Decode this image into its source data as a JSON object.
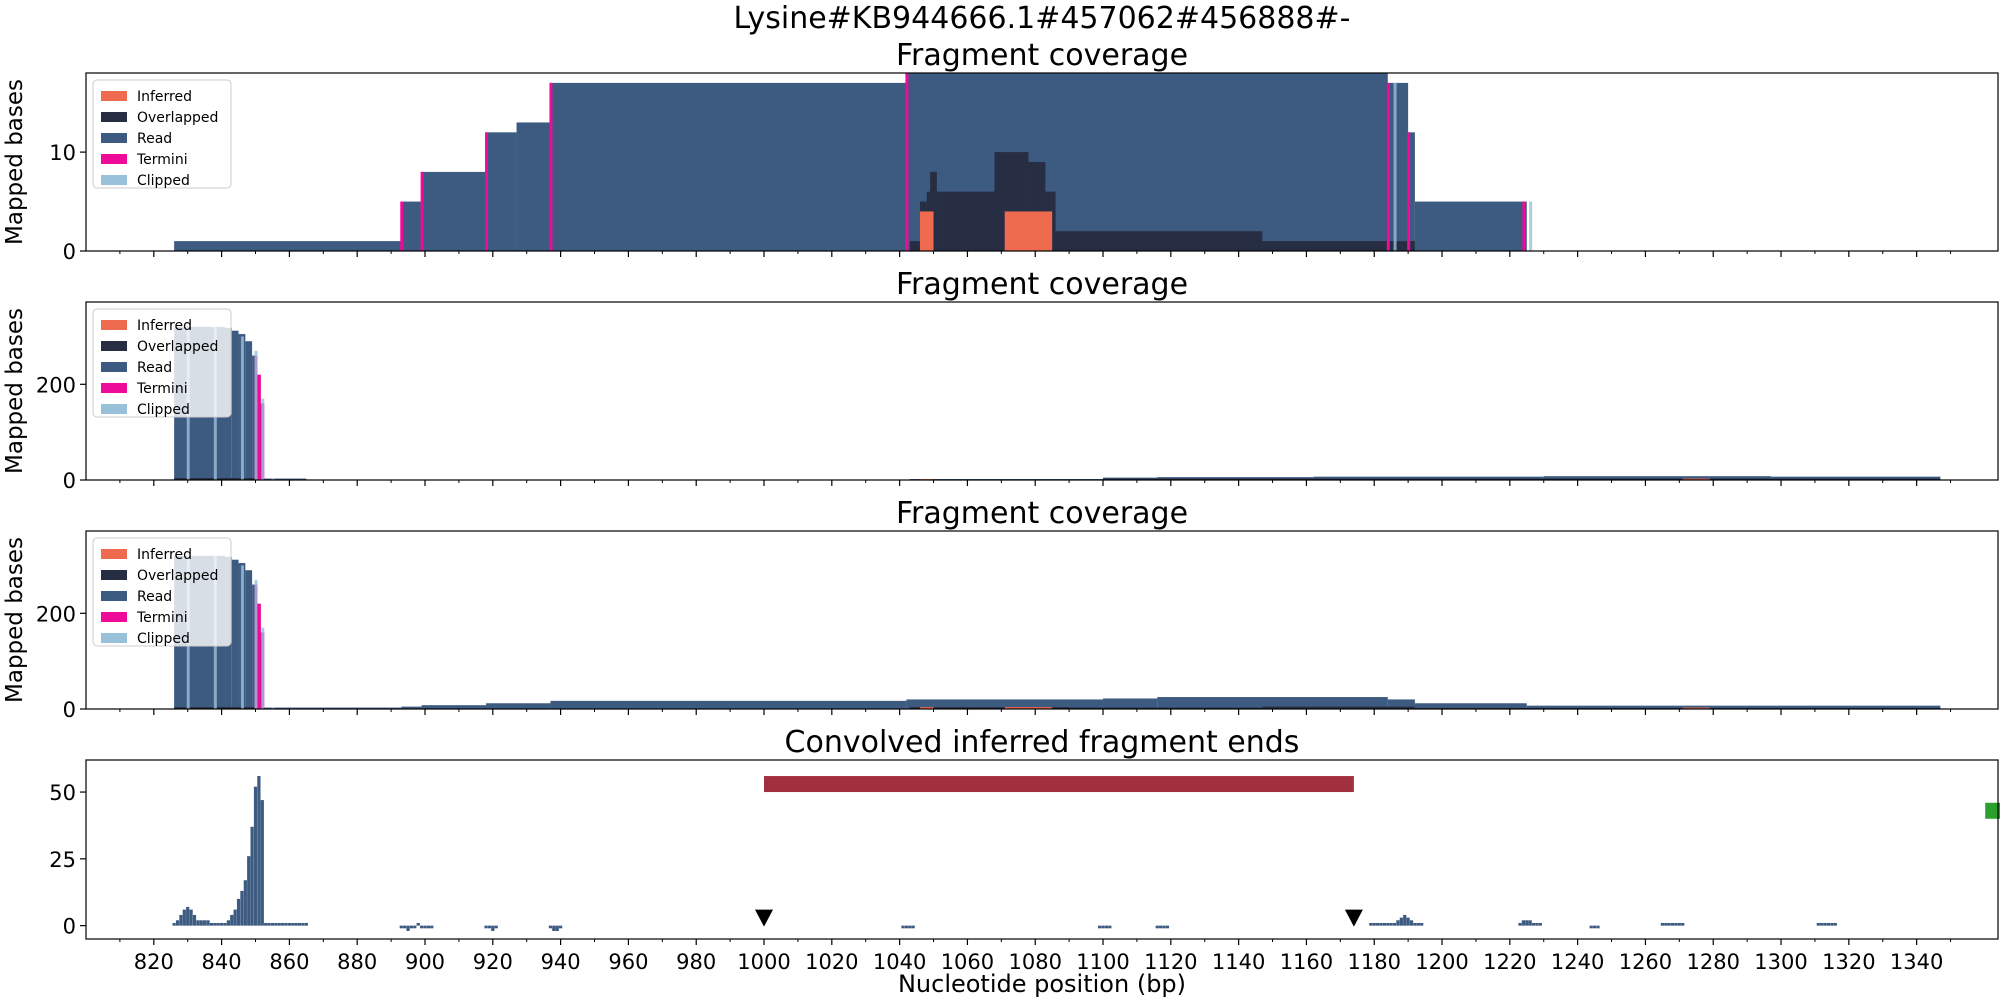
{
  "figure": {
    "suptitle": "Lysine#KB944666.1#457062#456888#-",
    "xlabel": "Nucleotide position (bp)"
  },
  "colors": {
    "inferred": "#ee6b4f",
    "overlapped": "#272e43",
    "read": "#3d5a80",
    "termini": "#ee0b99",
    "clipped": "#98c1d9",
    "region_bar": "#a12f3d",
    "end_marker": "#2ca02c",
    "triangle": "#000000"
  },
  "chart_data": [
    {
      "type": "area",
      "title": "Fragment coverage",
      "ylabel": "Mapped bases",
      "xlim": [
        800,
        1364
      ],
      "ylim": [
        0,
        18
      ],
      "yticks": [
        0,
        10
      ],
      "legend": {
        "placement": "top-left",
        "entries": [
          "Inferred",
          "Overlapped",
          "Read",
          "Termini",
          "Clipped"
        ]
      },
      "series": [
        {
          "name": "Read",
          "steps": [
            [
              826,
              1
            ],
            [
              893,
              5
            ],
            [
              899,
              8
            ],
            [
              918,
              12
            ],
            [
              927,
              13
            ],
            [
              937,
              17
            ],
            [
              1042,
              18
            ],
            [
              1184,
              17
            ],
            [
              1190,
              12
            ],
            [
              1192,
              5
            ],
            [
              1225,
              0
            ]
          ]
        },
        {
          "name": "Overlapped",
          "steps": [
            [
              1043,
              1
            ],
            [
              1046,
              5
            ],
            [
              1048,
              6
            ],
            [
              1049,
              8
            ],
            [
              1051,
              6
            ],
            [
              1068,
              10
            ],
            [
              1078,
              9
            ],
            [
              1083,
              6
            ],
            [
              1086,
              2
            ],
            [
              1147,
              1
            ],
            [
              1192,
              0
            ]
          ]
        },
        {
          "name": "Inferred",
          "steps": [
            [
              1046,
              4
            ],
            [
              1050,
              0
            ],
            [
              1071,
              4
            ],
            [
              1085,
              0
            ]
          ]
        },
        {
          "name": "Termini",
          "points": [
            [
              893,
              5
            ],
            [
              899,
              8
            ],
            [
              918,
              12
            ],
            [
              937,
              17
            ],
            [
              1042,
              18
            ],
            [
              1184,
              17
            ],
            [
              1190,
              12
            ],
            [
              1224,
              5
            ]
          ]
        },
        {
          "name": "Clipped",
          "points": [
            [
              1186,
              17
            ],
            [
              1226,
              5
            ]
          ]
        }
      ]
    },
    {
      "type": "area",
      "title": "Fragment coverage",
      "ylabel": "Mapped bases",
      "xlim": [
        800,
        1364
      ],
      "ylim": [
        0,
        372
      ],
      "yticks": [
        0,
        200
      ],
      "legend": {
        "placement": "top-left",
        "entries": [
          "Inferred",
          "Overlapped",
          "Read",
          "Termini",
          "Clipped"
        ]
      },
      "series": [
        {
          "name": "Read",
          "steps": [
            [
              826,
              320
            ],
            [
              841,
              318
            ],
            [
              843,
              312
            ],
            [
              845,
              305
            ],
            [
              847,
              290
            ],
            [
              849,
              260
            ],
            [
              850,
              220
            ],
            [
              851,
              160
            ],
            [
              852,
              3
            ],
            [
              865,
              1
            ],
            [
              1043,
              2
            ],
            [
              1100,
              5
            ],
            [
              1116,
              6
            ],
            [
              1162,
              7
            ],
            [
              1230,
              8
            ],
            [
              1297,
              7
            ],
            [
              1347,
              0
            ]
          ]
        },
        {
          "name": "Overlapped",
          "steps": [
            [
              826,
              4
            ],
            [
              850,
              2
            ],
            [
              853,
              0
            ],
            [
              1043,
              1
            ],
            [
              1100,
              3
            ],
            [
              1347,
              0
            ]
          ]
        },
        {
          "name": "Inferred",
          "steps": [
            [
              1046,
              2
            ],
            [
              1050,
              0
            ],
            [
              1271,
              3
            ],
            [
              1279,
              0
            ]
          ]
        },
        {
          "name": "Termini",
          "points": [
            [
              852,
              160
            ],
            [
              851,
              220
            ],
            [
              850,
              260
            ]
          ]
        },
        {
          "name": "Clipped",
          "points": [
            [
              830,
              325
            ],
            [
              838,
              320
            ],
            [
              846,
              300
            ],
            [
              850,
              270
            ],
            [
              852,
              170
            ],
            [
              855,
              3
            ]
          ]
        }
      ]
    },
    {
      "type": "area",
      "title": "Fragment coverage",
      "ylabel": "Mapped bases",
      "xlim": [
        800,
        1364
      ],
      "ylim": [
        0,
        372
      ],
      "yticks": [
        0,
        200
      ],
      "legend": {
        "placement": "top-left",
        "entries": [
          "Inferred",
          "Overlapped",
          "Read",
          "Termini",
          "Clipped"
        ]
      },
      "series": [
        {
          "name": "Read",
          "steps": [
            [
              826,
              320
            ],
            [
              841,
              318
            ],
            [
              843,
              312
            ],
            [
              845,
              305
            ],
            [
              847,
              290
            ],
            [
              849,
              260
            ],
            [
              850,
              220
            ],
            [
              851,
              160
            ],
            [
              852,
              3
            ],
            [
              893,
              5
            ],
            [
              899,
              8
            ],
            [
              918,
              12
            ],
            [
              937,
              17
            ],
            [
              1042,
              20
            ],
            [
              1100,
              22
            ],
            [
              1116,
              25
            ],
            [
              1184,
              20
            ],
            [
              1192,
              12
            ],
            [
              1225,
              7
            ],
            [
              1347,
              0
            ]
          ]
        },
        {
          "name": "Overlapped",
          "steps": [
            [
              826,
              4
            ],
            [
              850,
              2
            ],
            [
              853,
              0
            ],
            [
              1043,
              4
            ],
            [
              1090,
              3
            ],
            [
              1147,
              5
            ],
            [
              1192,
              2
            ],
            [
              1347,
              0
            ]
          ]
        },
        {
          "name": "Inferred",
          "steps": [
            [
              1046,
              4
            ],
            [
              1050,
              0
            ],
            [
              1071,
              4
            ],
            [
              1085,
              0
            ],
            [
              1271,
              3
            ],
            [
              1279,
              0
            ]
          ]
        },
        {
          "name": "Termini",
          "points": [
            [
              852,
              160
            ],
            [
              851,
              220
            ],
            [
              850,
              260
            ]
          ]
        },
        {
          "name": "Clipped",
          "points": [
            [
              830,
              325
            ],
            [
              838,
              320
            ],
            [
              846,
              300
            ],
            [
              850,
              270
            ],
            [
              852,
              170
            ],
            [
              855,
              3
            ]
          ]
        }
      ]
    },
    {
      "type": "bar",
      "title": "Convolved inferred fragment ends",
      "xlabel": "Nucleotide position (bp)",
      "xlim": [
        800,
        1364
      ],
      "ylim": [
        -5,
        62
      ],
      "yticks": [
        0,
        25,
        50
      ],
      "xticks": [
        820,
        840,
        860,
        880,
        900,
        920,
        940,
        960,
        980,
        1000,
        1020,
        1040,
        1060,
        1080,
        1100,
        1120,
        1140,
        1160,
        1180,
        1200,
        1220,
        1240,
        1260,
        1280,
        1300,
        1320,
        1340
      ],
      "x": [
        826,
        827,
        828,
        829,
        830,
        831,
        832,
        833,
        834,
        835,
        836,
        837,
        838,
        839,
        840,
        841,
        842,
        843,
        844,
        845,
        846,
        847,
        848,
        849,
        850,
        851,
        852,
        853,
        854,
        855,
        856,
        857,
        858,
        859,
        860,
        861,
        862,
        863,
        864,
        865,
        893,
        894,
        895,
        896,
        897,
        898,
        899,
        900,
        901,
        902,
        918,
        919,
        920,
        921,
        937,
        938,
        939,
        940,
        1041,
        1042,
        1043,
        1044,
        1099,
        1100,
        1101,
        1102,
        1116,
        1117,
        1118,
        1119,
        1179,
        1180,
        1181,
        1182,
        1183,
        1184,
        1185,
        1186,
        1187,
        1188,
        1189,
        1190,
        1191,
        1192,
        1193,
        1194,
        1223,
        1224,
        1225,
        1226,
        1227,
        1228,
        1229,
        1244,
        1245,
        1246,
        1265,
        1266,
        1267,
        1268,
        1269,
        1270,
        1271,
        1311,
        1312,
        1313,
        1314,
        1315,
        1316
      ],
      "values": [
        1,
        2,
        4,
        6,
        7,
        6,
        4,
        2,
        2,
        2,
        2,
        1,
        1,
        1,
        1,
        1,
        2,
        4,
        6,
        10,
        13,
        17,
        26,
        37,
        52,
        56,
        47,
        1,
        1,
        1,
        1,
        1,
        1,
        1,
        1,
        1,
        1,
        1,
        1,
        1,
        -1,
        -1,
        -2,
        -1,
        -1,
        1,
        -1,
        -1,
        -1,
        -1,
        -1,
        -1,
        -2,
        -1,
        -1,
        -2,
        -2,
        -1,
        -1,
        -1,
        -1,
        -1,
        -1,
        -1,
        -1,
        -1,
        -1,
        -1,
        -1,
        -1,
        1,
        1,
        1,
        1,
        1,
        1,
        1,
        1,
        2,
        3,
        4,
        3,
        2,
        1,
        1,
        1,
        1,
        2,
        2,
        2,
        1,
        1,
        1,
        -1,
        -1,
        -1,
        1,
        1,
        1,
        1,
        1,
        1,
        1,
        1,
        1,
        1,
        1,
        1,
        1
      ],
      "region": {
        "start": 1000,
        "end": 1174,
        "y": 53
      },
      "triangles": [
        1000,
        1174
      ],
      "end_marker": {
        "x": 1362,
        "y": 43
      }
    }
  ]
}
